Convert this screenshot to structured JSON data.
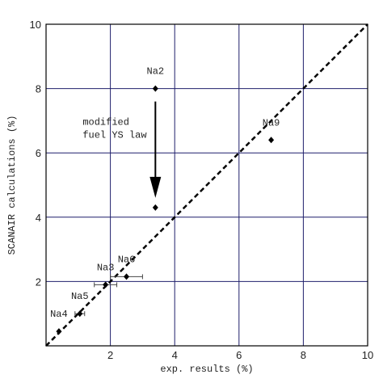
{
  "chart_data": {
    "type": "scatter",
    "x_label": "exp. results (%)",
    "y_label": "SCANAIR calculations (%)",
    "xlim": [
      0,
      10
    ],
    "ylim": [
      0,
      10
    ],
    "xticks": [
      2,
      4,
      6,
      8,
      10
    ],
    "yticks": [
      2,
      4,
      6,
      8,
      10
    ],
    "grid": true,
    "grid_color": "#1f1f6b",
    "marker_color": "#000000",
    "x": [
      3.4,
      3.4,
      7.0,
      2.5,
      1.85,
      1.05,
      0.4
    ],
    "y": [
      8.0,
      4.3,
      6.4,
      2.15,
      1.9,
      1.0,
      0.45
    ],
    "x_err": [
      null,
      null,
      null,
      0.5,
      0.35,
      0.15,
      null
    ],
    "labels": [
      "Na2",
      null,
      "Na9",
      "Na6",
      "Na3",
      "Na5",
      "Na4"
    ],
    "annotation": [
      "modified",
      "fuel YS law"
    ]
  }
}
